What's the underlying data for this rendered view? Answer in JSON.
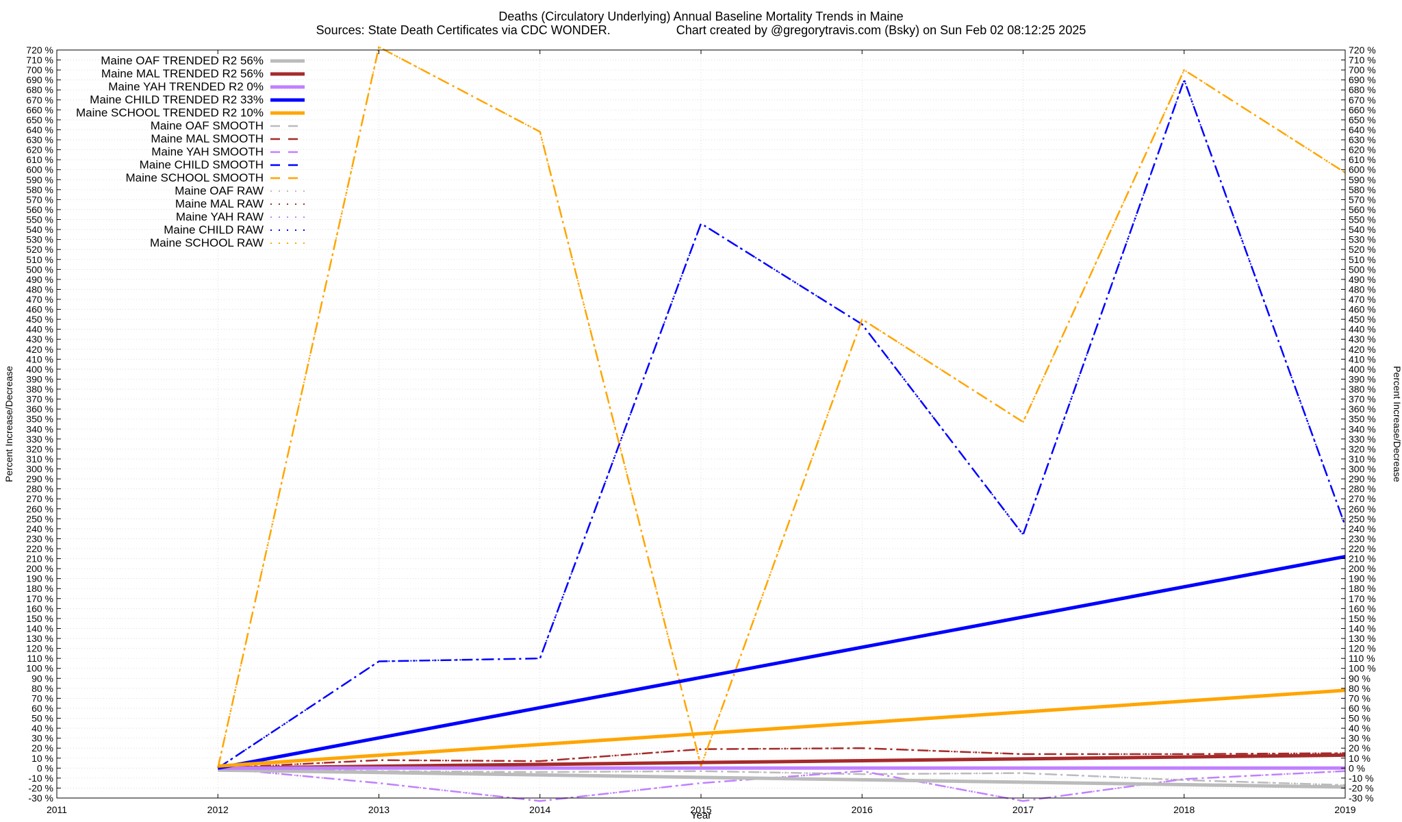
{
  "chart_data": {
    "type": "line",
    "title": "Deaths (Circulatory Underlying)  Annual Baseline Mortality Trends in Maine",
    "subtitle_left": "Sources: State Death Certificates via CDC WONDER.",
    "subtitle_right": "Chart created by @gregorytravis.com (Bsky) on Sun Feb 02 08:12:25 2025",
    "xlabel": "Year",
    "ylabel": "Percent Increase/Decrease",
    "y2label": "Percent Increase/Decrease",
    "xlim": [
      2011,
      2019
    ],
    "ylim": [
      -30,
      720
    ],
    "x_ticks": [
      "2011",
      "2012",
      "2013",
      "2014",
      "2015",
      "2016",
      "2017",
      "2018",
      "2019"
    ],
    "y_tick_step": 10,
    "y_tick_suffix": " %",
    "grid": true,
    "legend_position": "top-left",
    "series": [
      {
        "name": "Maine OAF TRENDED R2  56%",
        "style": "solid",
        "color": "#bbbbbb",
        "x": [
          2012,
          2019
        ],
        "y": [
          -2,
          -19
        ]
      },
      {
        "name": "Maine MAL TRENDED R2  56%",
        "style": "solid",
        "color": "#a52a2a",
        "x": [
          2012,
          2019
        ],
        "y": [
          0,
          13
        ]
      },
      {
        "name": "Maine YAH TRENDED R2  0%",
        "style": "solid",
        "color": "#c080ff",
        "x": [
          2012,
          2019
        ],
        "y": [
          0,
          0
        ]
      },
      {
        "name": "Maine CHILD TRENDED R2  33%",
        "style": "solid",
        "color": "#0000ff",
        "x": [
          2012,
          2019
        ],
        "y": [
          0,
          212
        ]
      },
      {
        "name": "Maine SCHOOL TRENDED R2  10%",
        "style": "solid",
        "color": "#ffa500",
        "x": [
          2012,
          2019
        ],
        "y": [
          2,
          78
        ]
      },
      {
        "name": "Maine OAF SMOOTH",
        "style": "dash",
        "color": "#bbbbbb",
        "x": [
          2012,
          2013,
          2014,
          2015,
          2016,
          2017,
          2018,
          2019
        ],
        "y": [
          0,
          -3,
          -4,
          -3,
          -6,
          -5,
          -12,
          -17
        ]
      },
      {
        "name": "Maine MAL SMOOTH",
        "style": "dash",
        "color": "#a52a2a",
        "x": [
          2012,
          2013,
          2014,
          2015,
          2016,
          2017,
          2018,
          2019
        ],
        "y": [
          0,
          8,
          7,
          19,
          20,
          14,
          14,
          15
        ]
      },
      {
        "name": "Maine YAH SMOOTH",
        "style": "dash",
        "color": "#c080ff",
        "x": [
          2012,
          2013,
          2014,
          2015,
          2016,
          2017,
          2018,
          2019
        ],
        "y": [
          0,
          -15,
          -33,
          -15,
          -3,
          -33,
          -11,
          -3
        ]
      },
      {
        "name": "Maine CHILD SMOOTH",
        "style": "dash",
        "color": "#0000ff",
        "x": [
          2012,
          2013,
          2014,
          2015,
          2016,
          2017,
          2018,
          2019
        ],
        "y": [
          0,
          107,
          110,
          546,
          445,
          234,
          690,
          243
        ]
      },
      {
        "name": "Maine SCHOOL SMOOTH",
        "style": "dash",
        "color": "#ffa500",
        "x": [
          2012,
          2013,
          2014,
          2015,
          2016,
          2017,
          2018,
          2019
        ],
        "y": [
          0,
          723,
          638,
          2,
          450,
          347,
          700,
          597
        ]
      },
      {
        "name": "Maine OAF RAW",
        "style": "dot",
        "color": "#bbbbbb",
        "x": [
          2012,
          2013,
          2014,
          2015,
          2016,
          2017,
          2018,
          2019
        ],
        "y": [
          0,
          -3,
          -4,
          -3,
          -6,
          -5,
          -12,
          -17
        ]
      },
      {
        "name": "Maine MAL RAW",
        "style": "dot",
        "color": "#a52a2a",
        "x": [
          2012,
          2013,
          2014,
          2015,
          2016,
          2017,
          2018,
          2019
        ],
        "y": [
          0,
          8,
          7,
          19,
          20,
          14,
          14,
          15
        ]
      },
      {
        "name": "Maine YAH RAW",
        "style": "dot",
        "color": "#c080ff",
        "x": [
          2012,
          2013,
          2014,
          2015,
          2016,
          2017,
          2018,
          2019
        ],
        "y": [
          0,
          -15,
          -33,
          -15,
          -3,
          -33,
          -11,
          -3
        ]
      },
      {
        "name": "Maine CHILD RAW",
        "style": "dot",
        "color": "#0000ff",
        "x": [
          2012,
          2013,
          2014,
          2015,
          2016,
          2017,
          2018,
          2019
        ],
        "y": [
          0,
          107,
          110,
          546,
          445,
          234,
          690,
          243
        ]
      },
      {
        "name": "Maine SCHOOL RAW",
        "style": "dot",
        "color": "#ffa500",
        "x": [
          2012,
          2013,
          2014,
          2015,
          2016,
          2017,
          2018,
          2019
        ],
        "y": [
          0,
          723,
          638,
          2,
          450,
          347,
          700,
          597
        ]
      }
    ]
  }
}
